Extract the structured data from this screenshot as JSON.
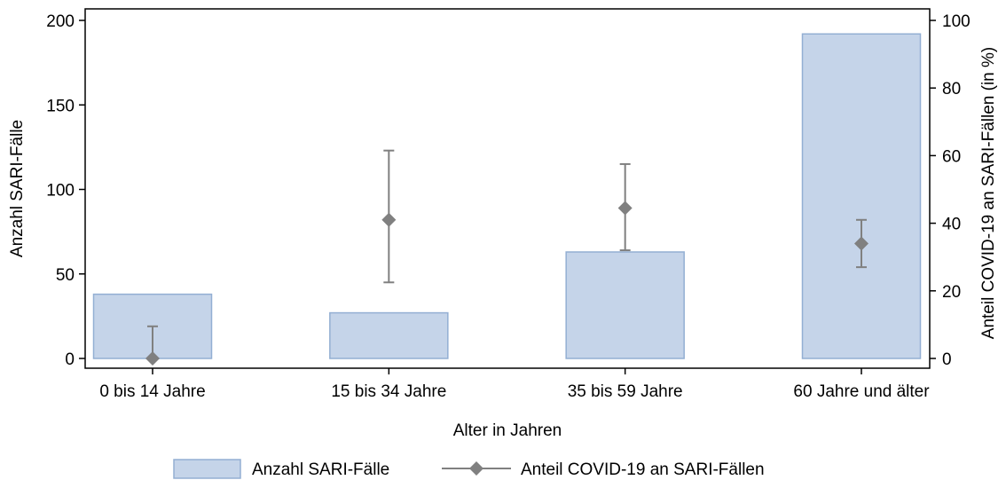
{
  "chart_data": {
    "type": "bar",
    "categories": [
      "0 bis 14 Jahre",
      "15 bis 34 Jahre",
      "35 bis 59 Jahre",
      "60 Jahre und älter"
    ],
    "xlabel": "Alter in Jahren",
    "ylabel_left": "Anzahl SARI-Fälle",
    "ylabel_right": "Anteil COVID-19 an SARI-Fällen (in %)",
    "ylim_left": [
      0,
      200
    ],
    "ylim_right": [
      0,
      100
    ],
    "yticks_left": [
      0,
      50,
      100,
      150,
      200
    ],
    "yticks_right": [
      0,
      20,
      40,
      60,
      80,
      100
    ],
    "grid": false,
    "legend_position": "bottom",
    "series": [
      {
        "name": "Anzahl SARI-Fälle",
        "type": "bar",
        "axis": "left",
        "color": "#c5d4e9",
        "edge_color": "#93afd3",
        "values": [
          38,
          27,
          63,
          192
        ]
      },
      {
        "name": "Anteil COVID-19 an SARI-Fällen",
        "type": "point",
        "axis": "right",
        "marker": "diamond",
        "color": "#808080",
        "values": [
          0,
          41,
          44.5,
          34
        ],
        "ci_lower": [
          0,
          22.5,
          32,
          27
        ],
        "ci_upper": [
          9.5,
          61.5,
          57.5,
          41
        ]
      }
    ]
  }
}
